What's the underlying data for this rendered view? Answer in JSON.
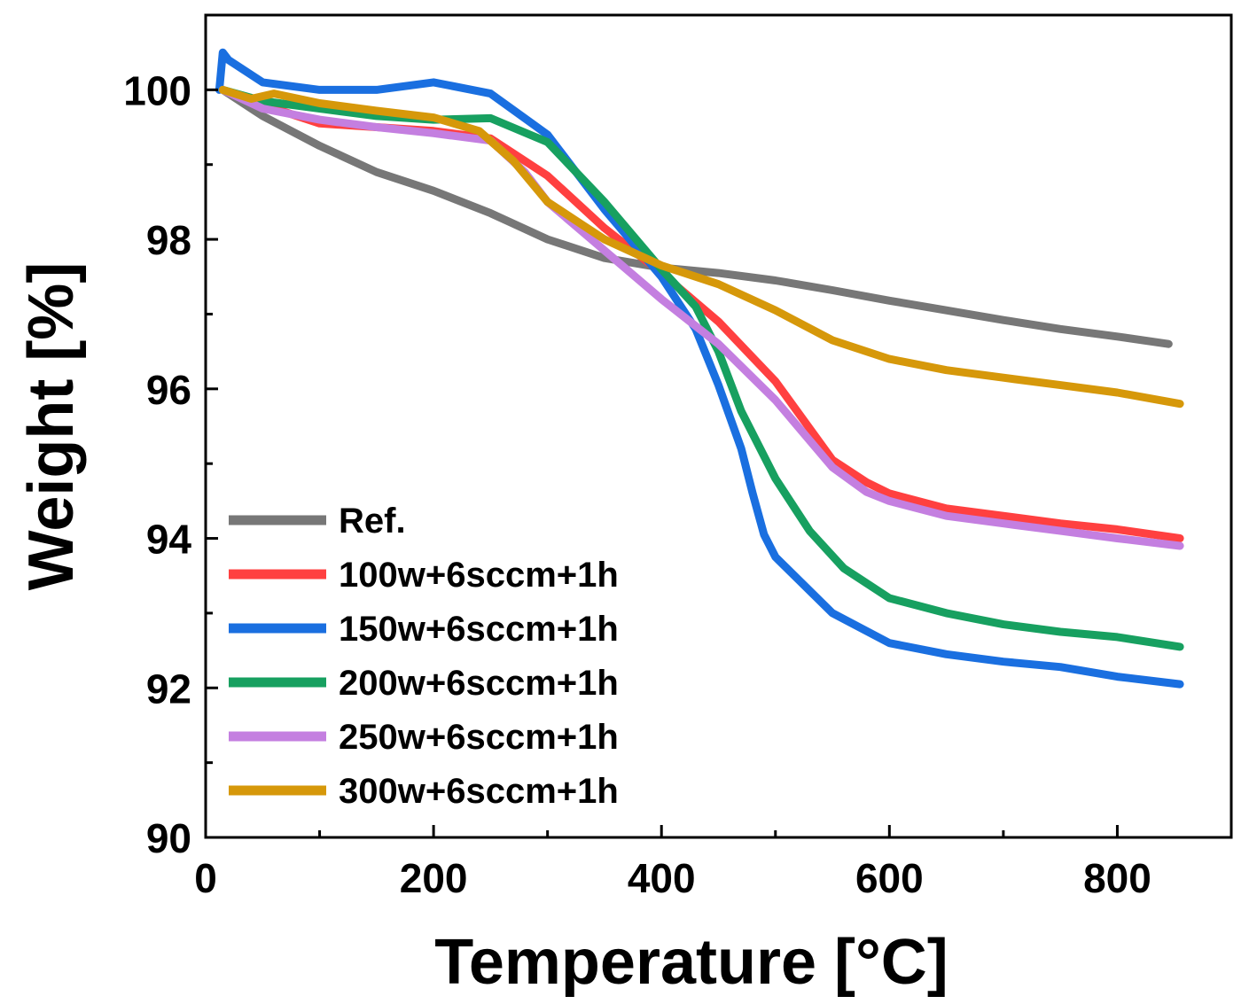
{
  "chart_data": {
    "type": "line",
    "title": "",
    "xlabel": "Temperature [°C]",
    "ylabel": "Weight [%]",
    "xlim": [
      0,
      900
    ],
    "ylim": [
      90,
      101
    ],
    "x_ticks": [
      0,
      200,
      400,
      600,
      800
    ],
    "y_ticks": [
      90,
      92,
      94,
      96,
      98,
      100
    ],
    "x_tick_labels": [
      "0",
      "200",
      "400",
      "600",
      "800"
    ],
    "y_tick_labels": [
      "90",
      "92",
      "94",
      "96",
      "98",
      "100"
    ],
    "grid": false,
    "legend_position": "lower-left",
    "series": [
      {
        "name": "Ref.",
        "color": "#777777",
        "x": [
          15,
          50,
          100,
          150,
          200,
          250,
          300,
          350,
          400,
          450,
          500,
          550,
          600,
          650,
          700,
          750,
          800,
          845
        ],
        "y": [
          100.0,
          99.65,
          99.25,
          98.9,
          98.65,
          98.35,
          98.0,
          97.75,
          97.62,
          97.55,
          97.45,
          97.32,
          97.18,
          97.05,
          96.92,
          96.8,
          96.7,
          96.6
        ]
      },
      {
        "name": "100w+6sccm+1h",
        "color": "#ff4040",
        "x": [
          15,
          50,
          100,
          150,
          200,
          250,
          300,
          350,
          400,
          450,
          500,
          550,
          580,
          600,
          650,
          700,
          750,
          800,
          855
        ],
        "y": [
          100.0,
          99.8,
          99.55,
          99.5,
          99.45,
          99.35,
          98.85,
          98.15,
          97.55,
          96.9,
          96.1,
          95.05,
          94.75,
          94.6,
          94.4,
          94.3,
          94.2,
          94.12,
          94.0
        ]
      },
      {
        "name": "150w+6sccm+1h",
        "color": "#1a6fe0",
        "x": [
          12,
          15,
          20,
          50,
          100,
          150,
          200,
          250,
          300,
          350,
          400,
          430,
          450,
          470,
          480,
          490,
          500,
          550,
          600,
          650,
          700,
          750,
          800,
          855
        ],
        "y": [
          100.0,
          100.5,
          100.4,
          100.1,
          100.0,
          100.0,
          100.1,
          99.95,
          99.4,
          98.4,
          97.5,
          96.8,
          96.05,
          95.2,
          94.6,
          94.05,
          93.75,
          93.0,
          92.6,
          92.45,
          92.35,
          92.28,
          92.15,
          92.05
        ]
      },
      {
        "name": "200w+6sccm+1h",
        "color": "#17a060",
        "x": [
          15,
          50,
          100,
          150,
          200,
          250,
          300,
          350,
          400,
          430,
          450,
          470,
          500,
          530,
          560,
          600,
          650,
          700,
          750,
          800,
          855
        ],
        "y": [
          100.0,
          99.85,
          99.75,
          99.65,
          99.6,
          99.62,
          99.3,
          98.5,
          97.6,
          97.1,
          96.5,
          95.7,
          94.8,
          94.1,
          93.6,
          93.2,
          93.0,
          92.85,
          92.75,
          92.68,
          92.55
        ]
      },
      {
        "name": "250w+6sccm+1h",
        "color": "#c47fe0",
        "x": [
          15,
          50,
          100,
          150,
          200,
          250,
          280,
          300,
          350,
          400,
          450,
          500,
          550,
          580,
          600,
          650,
          700,
          750,
          800,
          855
        ],
        "y": [
          100.0,
          99.75,
          99.6,
          99.5,
          99.42,
          99.32,
          98.9,
          98.5,
          97.85,
          97.2,
          96.6,
          95.85,
          94.95,
          94.62,
          94.5,
          94.3,
          94.2,
          94.1,
          94.0,
          93.9
        ]
      },
      {
        "name": "300w+6sccm+1h",
        "color": "#d6980a",
        "x": [
          15,
          40,
          60,
          100,
          150,
          200,
          240,
          270,
          300,
          330,
          350,
          400,
          450,
          500,
          550,
          600,
          650,
          700,
          750,
          800,
          855
        ],
        "y": [
          100.0,
          99.88,
          99.95,
          99.82,
          99.72,
          99.63,
          99.45,
          99.05,
          98.5,
          98.2,
          98.0,
          97.65,
          97.4,
          97.05,
          96.65,
          96.4,
          96.25,
          96.15,
          96.05,
          95.95,
          95.8
        ]
      }
    ]
  }
}
